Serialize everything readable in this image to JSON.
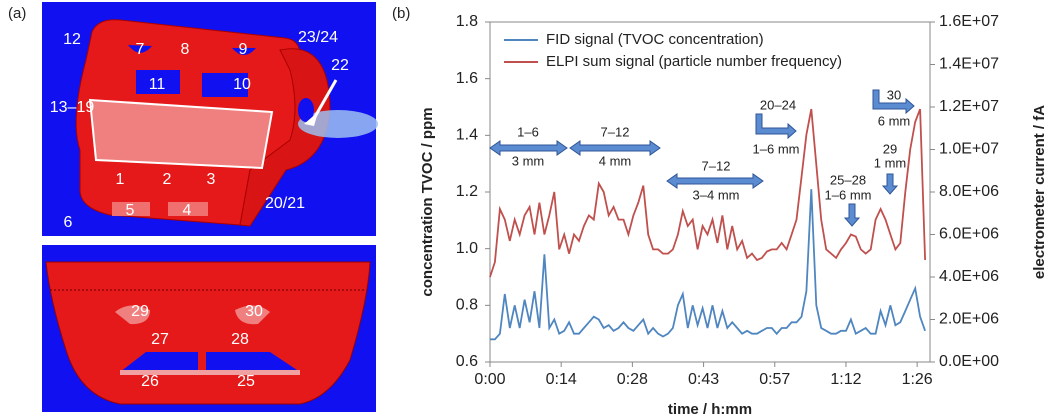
{
  "panel_a": {
    "label": "(a)",
    "top_labels": [
      "12",
      "7",
      "8",
      "9",
      "23/24",
      "22",
      "11",
      "10",
      "13–19",
      "1",
      "2",
      "3",
      "5",
      "4",
      "20/21",
      "6"
    ],
    "bottom_labels": [
      "29",
      "30",
      "27",
      "28",
      "26",
      "25"
    ]
  },
  "chart_data": {
    "type": "line",
    "panel_label": "(b)",
    "x_label": "time / h:mm",
    "y_label": "concentration TVOC / ppm",
    "y2_label": "electrometer current / fA",
    "x": [
      0,
      1,
      2,
      3,
      4,
      5,
      6,
      7,
      8,
      9,
      10,
      11,
      12,
      13,
      14,
      15,
      16,
      17,
      18,
      19,
      20,
      21,
      22,
      23,
      24,
      25,
      26,
      27,
      28,
      29,
      30,
      31,
      32,
      33,
      34,
      35,
      36,
      37,
      38,
      39,
      40,
      41,
      42,
      43,
      44,
      45,
      46,
      47,
      48,
      49,
      50,
      51,
      52,
      53,
      54,
      55,
      56,
      57,
      58,
      59,
      60,
      61,
      62,
      63,
      64,
      65,
      66,
      67,
      68,
      69,
      70,
      71,
      72,
      73,
      74,
      75,
      76,
      77,
      78,
      79,
      80,
      81,
      82,
      83,
      84,
      85,
      86,
      87,
      88
    ],
    "series": [
      {
        "name": "FID signal (TVOC concentration)",
        "color": "#4f86c0",
        "axis": "y",
        "values": [
          0.68,
          0.68,
          0.7,
          0.84,
          0.72,
          0.8,
          0.72,
          0.82,
          0.74,
          0.85,
          0.72,
          0.98,
          0.72,
          0.75,
          0.7,
          0.71,
          0.74,
          0.7,
          0.7,
          0.72,
          0.74,
          0.76,
          0.75,
          0.72,
          0.73,
          0.71,
          0.72,
          0.74,
          0.72,
          0.71,
          0.73,
          0.75,
          0.7,
          0.72,
          0.7,
          0.69,
          0.7,
          0.72,
          0.8,
          0.84,
          0.72,
          0.8,
          0.73,
          0.79,
          0.72,
          0.8,
          0.72,
          0.78,
          0.72,
          0.74,
          0.72,
          0.7,
          0.71,
          0.7,
          0.7,
          0.71,
          0.72,
          0.72,
          0.7,
          0.72,
          0.72,
          0.74,
          0.74,
          0.76,
          0.85,
          1.21,
          0.8,
          0.72,
          0.71,
          0.7,
          0.7,
          0.71,
          0.71,
          0.75,
          0.7,
          0.71,
          0.72,
          0.7,
          0.7,
          0.78,
          0.73,
          0.8,
          0.73,
          0.74,
          0.78,
          0.82,
          0.86,
          0.76,
          0.71
        ]
      },
      {
        "name": "ELPI sum signal (particle number frequency)",
        "color": "#c0504d",
        "axis": "y2",
        "values": [
          4000000.0,
          4700000.0,
          7200000.0,
          6700000.0,
          5700000.0,
          6700000.0,
          6000000.0,
          6900000.0,
          7300000.0,
          6000000.0,
          7500000.0,
          6000000.0,
          6900000.0,
          8000000.0,
          5300000.0,
          6000000.0,
          5100000.0,
          6000000.0,
          5700000.0,
          6400000.0,
          6900000.0,
          6700000.0,
          8400000.0,
          8000000.0,
          6900000.0,
          7300000.0,
          6700000.0,
          6700000.0,
          6000000.0,
          6900000.0,
          7500000.0,
          8300000.0,
          6000000.0,
          5300000.0,
          5300000.0,
          5100000.0,
          5100000.0,
          5300000.0,
          6000000.0,
          7100000.0,
          6400000.0,
          6700000.0,
          5300000.0,
          6400000.0,
          6000000.0,
          6700000.0,
          5600000.0,
          6900000.0,
          5300000.0,
          6400000.0,
          5300000.0,
          5700000.0,
          4900000.0,
          5100000.0,
          4800000.0,
          4900000.0,
          5200000.0,
          5300000.0,
          5300000.0,
          5600000.0,
          5300000.0,
          6000000.0,
          6700000.0,
          8700000.0,
          10700000.0,
          11900000.0,
          9300000.0,
          6700000.0,
          5300000.0,
          5100000.0,
          4900000.0,
          5300000.0,
          5600000.0,
          6000000.0,
          5900000.0,
          5300000.0,
          5100000.0,
          5300000.0,
          6700000.0,
          7200000.0,
          6700000.0,
          6000000.0,
          5300000.0,
          5600000.0,
          8000000.0,
          10000000.0,
          11300000.0,
          11900000.0,
          4800000.0
        ]
      }
    ],
    "xlim": [
      0,
      89
    ],
    "xticks": [
      {
        "value": 0,
        "label": "0:00"
      },
      {
        "value": 14.4,
        "label": "0:14"
      },
      {
        "value": 28.8,
        "label": "0:28"
      },
      {
        "value": 43.2,
        "label": "0:43"
      },
      {
        "value": 57.6,
        "label": "0:57"
      },
      {
        "value": 72,
        "label": "1:12"
      },
      {
        "value": 86.4,
        "label": "1:26"
      }
    ],
    "ylim": [
      0.6,
      1.8
    ],
    "yticks": [
      0.6,
      0.8,
      {
        "value": 1,
        "label": "1.0"
      },
      1.2,
      1.4,
      1.6,
      1.8
    ],
    "y2lim": [
      0,
      16000000
    ],
    "y2ticks": [
      {
        "value": 0,
        "label": "0.0E+00"
      },
      {
        "value": 2000000,
        "label": "2.0E+06"
      },
      {
        "value": 4000000,
        "label": "4.0E+06"
      },
      {
        "value": 6000000,
        "label": "6.0E+06"
      },
      {
        "value": 8000000,
        "label": "8.0E+06"
      },
      {
        "value": 10000000,
        "label": "1.0E+07"
      },
      {
        "value": 12000000,
        "label": "1.2E+07"
      },
      {
        "value": 14000000,
        "label": "1.4E+07"
      },
      {
        "value": 16000000,
        "label": "1.6E+07"
      }
    ],
    "legend": "upper left",
    "annotations": [
      "1–6",
      "3 mm",
      "7–12",
      "4 mm",
      "7–12",
      "3–4 mm",
      "20–24",
      "1–6 mm",
      "25–28",
      "1–6 mm",
      "29",
      "1 mm",
      "30",
      "6 mm"
    ]
  }
}
